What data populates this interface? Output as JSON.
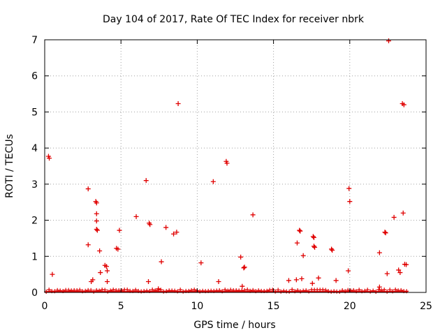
{
  "chart_data": {
    "type": "scatter",
    "title": "Day 104 of 2017, Rate Of TEC Index for receiver nbrk",
    "xlabel": "GPS time / hours",
    "ylabel": "ROTI / TECUs",
    "xlim": [
      0,
      25
    ],
    "ylim": [
      0,
      7
    ],
    "xticks": [
      0,
      5,
      10,
      15,
      20,
      25
    ],
    "yticks": [
      0,
      1,
      2,
      3,
      4,
      5,
      6,
      7
    ],
    "grid": true,
    "marker": "plus",
    "color": "#e00000",
    "points": [
      [
        0.25,
        3.77
      ],
      [
        0.3,
        3.72
      ],
      [
        0.5,
        0.5
      ],
      [
        2.85,
        2.87
      ],
      [
        2.85,
        1.32
      ],
      [
        3.05,
        0.3
      ],
      [
        3.15,
        0.35
      ],
      [
        3.35,
        2.52
      ],
      [
        3.4,
        2.48
      ],
      [
        3.4,
        2.18
      ],
      [
        3.4,
        1.98
      ],
      [
        3.4,
        1.75
      ],
      [
        3.45,
        1.72
      ],
      [
        3.6,
        1.15
      ],
      [
        3.65,
        0.55
      ],
      [
        3.95,
        0.75
      ],
      [
        4.05,
        0.72
      ],
      [
        4.1,
        0.6
      ],
      [
        4.1,
        0.3
      ],
      [
        4.7,
        1.22
      ],
      [
        4.8,
        1.2
      ],
      [
        4.9,
        1.72
      ],
      [
        6.0,
        2.1
      ],
      [
        6.65,
        3.1
      ],
      [
        6.8,
        0.3
      ],
      [
        6.85,
        1.92
      ],
      [
        6.9,
        1.88
      ],
      [
        7.45,
        0.1
      ],
      [
        7.65,
        0.85
      ],
      [
        7.95,
        1.8
      ],
      [
        8.45,
        1.62
      ],
      [
        8.65,
        1.67
      ],
      [
        8.75,
        5.23
      ],
      [
        10.25,
        0.82
      ],
      [
        11.05,
        3.07
      ],
      [
        11.4,
        0.3
      ],
      [
        11.9,
        3.63
      ],
      [
        11.95,
        3.58
      ],
      [
        12.85,
        0.98
      ],
      [
        12.95,
        0.17
      ],
      [
        13.05,
        0.68
      ],
      [
        13.1,
        0.7
      ],
      [
        13.65,
        2.15
      ],
      [
        16.0,
        0.33
      ],
      [
        16.55,
        1.37
      ],
      [
        16.5,
        0.35
      ],
      [
        16.7,
        1.72
      ],
      [
        16.75,
        1.7
      ],
      [
        16.85,
        0.38
      ],
      [
        16.95,
        1.02
      ],
      [
        17.55,
        0.25
      ],
      [
        17.6,
        1.55
      ],
      [
        17.65,
        1.52
      ],
      [
        17.65,
        1.28
      ],
      [
        17.7,
        1.25
      ],
      [
        17.95,
        0.4
      ],
      [
        18.8,
        1.2
      ],
      [
        18.85,
        1.17
      ],
      [
        19.1,
        0.33
      ],
      [
        19.9,
        0.6
      ],
      [
        19.95,
        2.88
      ],
      [
        20.0,
        2.52
      ],
      [
        21.95,
        1.1
      ],
      [
        21.95,
        0.15
      ],
      [
        22.3,
        1.67
      ],
      [
        22.35,
        1.65
      ],
      [
        22.45,
        0.52
      ],
      [
        22.55,
        6.97
      ],
      [
        22.9,
        2.08
      ],
      [
        23.2,
        0.62
      ],
      [
        23.3,
        0.55
      ],
      [
        23.45,
        5.23
      ],
      [
        23.55,
        5.2
      ],
      [
        23.5,
        2.2
      ],
      [
        23.6,
        0.78
      ],
      [
        23.7,
        0.77
      ]
    ]
  }
}
